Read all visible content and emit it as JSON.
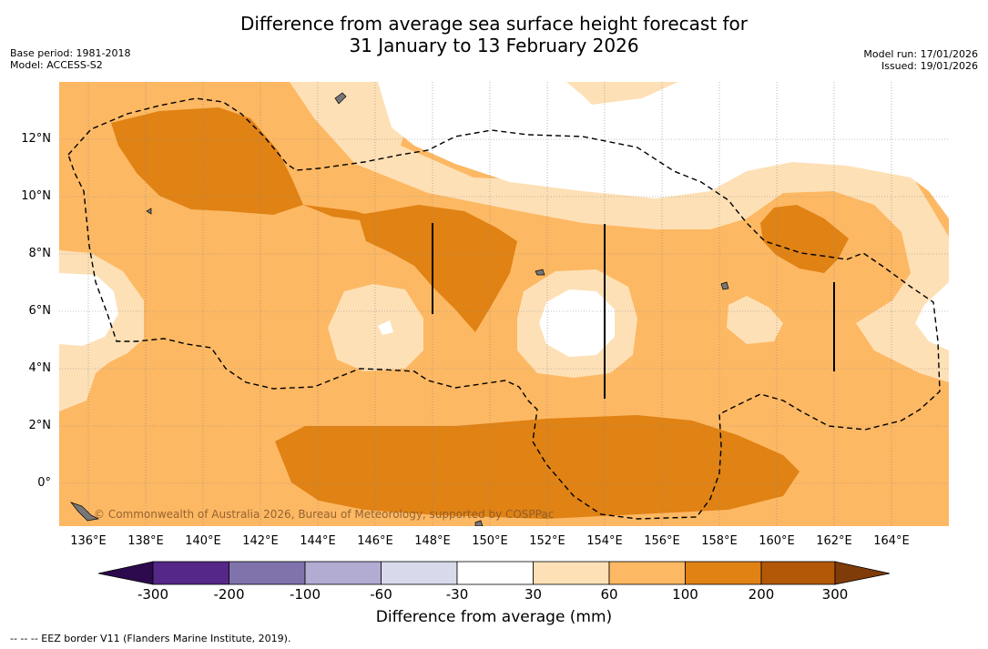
{
  "title_line1": "Difference from average sea surface height forecast for",
  "title_line2": "31 January to 13 February 2026",
  "base_period": "Base period: 1981-2018",
  "model": "Model: ACCESS-S2",
  "model_run": "Model run: 17/01/2026",
  "issued": "Issued: 19/01/2026",
  "credit": "© Commonwealth of Australia 2026, Bureau of Meteorology, supported by COSPPac",
  "x_ticks": [
    "136°E",
    "138°E",
    "140°E",
    "142°E",
    "144°E",
    "146°E",
    "148°E",
    "150°E",
    "152°E",
    "154°E",
    "156°E",
    "158°E",
    "160°E",
    "162°E",
    "164°E"
  ],
  "y_ticks": [
    "12°N",
    "10°N",
    "8°N",
    "6°N",
    "4°N",
    "2°N",
    "0°"
  ],
  "colorbar": {
    "labels": [
      "-300",
      "-200",
      "-100",
      "-60",
      "-30",
      "30",
      "60",
      "100",
      "200",
      "300"
    ],
    "colors": [
      "#2d0a4e",
      "#542788",
      "#8073ac",
      "#b2abd2",
      "#d8daeb",
      "#ffffff",
      "#fee0b6",
      "#fdb863",
      "#e08214",
      "#b35806",
      "#7f3b08"
    ],
    "title": "Difference from average (mm)"
  },
  "footnote": "-- -- -- EEZ border V11 (Flanders Marine Institute, 2019)."
}
